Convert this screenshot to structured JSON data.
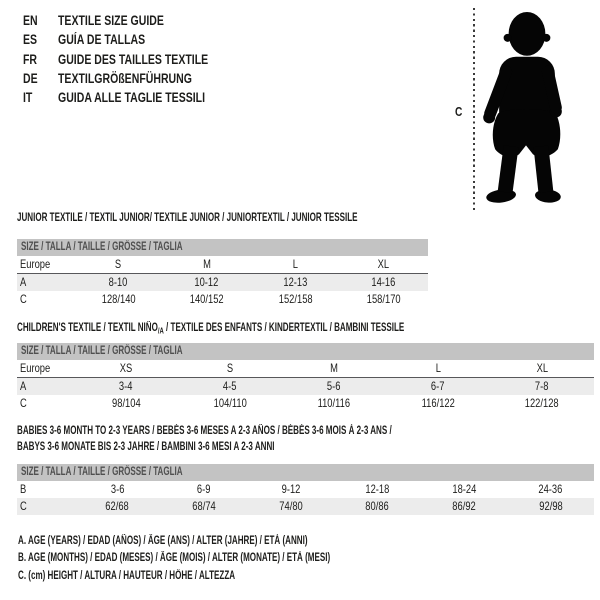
{
  "colors": {
    "text": "#1d1d1b",
    "size_bar_bg": "#c3c3c3",
    "row_shade_bg": "#ececec",
    "divider_line": "#57575a",
    "silhouette": "#050505"
  },
  "languages": [
    {
      "code": "EN",
      "title": "TEXTILE SIZE GUIDE"
    },
    {
      "code": "ES",
      "title": "GUÍA DE TALLAS"
    },
    {
      "code": "FR",
      "title": "GUIDE DES TAILLES TEXTILE"
    },
    {
      "code": "DE",
      "title": "TEXTILGRÖßENFÜHRUNG"
    },
    {
      "code": "IT",
      "title": "GUIDA ALLE TAGLIE TESSILI"
    }
  ],
  "figure": {
    "icon": "baby-silhouette",
    "label": "C"
  },
  "tables": [
    {
      "title_lines": [
        [
          {
            "text": "JUNIOR TEXTILE / TEXTIL JUNIOR/ TEXTILE JUNIOR / JUNIORTEXTIL / JUNIOR TESSILE"
          }
        ]
      ],
      "size_header": "SIZE / TALLA / TAILLE / GRÖSSE / TAGLIA",
      "rows": [
        {
          "label": "Europe",
          "cells": [
            "S",
            "M",
            "L",
            "XL"
          ],
          "shade": false,
          "divider": true
        },
        {
          "label": "A",
          "cells": [
            "8-10",
            "10-12",
            "12-13",
            "14-16"
          ],
          "shade": true,
          "divider": false
        },
        {
          "label": "C",
          "cells": [
            "128/140",
            "140/152",
            "152/158",
            "158/170"
          ],
          "shade": false,
          "divider": false
        }
      ]
    },
    {
      "title_lines": [
        [
          {
            "text": "CHILDREN'S TEXTILE / TEXTIL NIÑO"
          },
          {
            "text": "/A",
            "sub": true
          },
          {
            "text": " / TEXTILE DES ENFANTS / KINDERTEXTIL / BAMBINI TESSILE"
          }
        ]
      ],
      "size_header": "SIZE / TALLA / TAILLE / GRÖSSE / TAGLIA",
      "rows": [
        {
          "label": "Europe",
          "cells": [
            "XS",
            "S",
            "M",
            "L",
            "XL"
          ],
          "shade": false,
          "divider": true
        },
        {
          "label": "A",
          "cells": [
            "3-4",
            "4-5",
            "5-6",
            "6-7",
            "7-8"
          ],
          "shade": true,
          "divider": false
        },
        {
          "label": "C",
          "cells": [
            "98/104",
            "104/110",
            "110/116",
            "116/122",
            "122/128"
          ],
          "shade": false,
          "divider": false
        }
      ]
    },
    {
      "title_lines": [
        [
          {
            "text": "BABIES 3-6 MONTH TO 2-3 YEARS / BEBÉS 3-6 MESES A 2-3 AÑOS / BÉBÉS 3-6 MOIS À 2-3 ANS /"
          }
        ],
        [
          {
            "text": "BABYS 3-6 MONATE BIS 2-3 JAHRE / BAMBINI 3-6 MESI A 2-3 ANNI"
          }
        ]
      ],
      "size_header": "SIZE / TALLA / TAILLE / GRÖSSE / TAGLIA",
      "rows": [
        {
          "label": "B",
          "cells": [
            "3-6",
            "6-9",
            "9-12",
            "12-18",
            "18-24",
            "24-36"
          ],
          "shade": false,
          "divider": false
        },
        {
          "label": "C",
          "cells": [
            "62/68",
            "68/74",
            "74/80",
            "80/86",
            "86/92",
            "92/98"
          ],
          "shade": true,
          "divider": false
        }
      ]
    }
  ],
  "notes": [
    "A. AGE (YEARS) / EDAD (AÑOS) / ÂGE (ANS) / ALTER (JAHRE) / ETÀ (ANNI)",
    "B. AGE (MONTHS) / EDAD (MESES) / ÂGE (MOIS) / ALTER (MONATE) / ETÀ (MESI)",
    "C. (cm) HEIGHT / ALTURA / HAUTEUR / HÖHE / ALTEZZA"
  ]
}
